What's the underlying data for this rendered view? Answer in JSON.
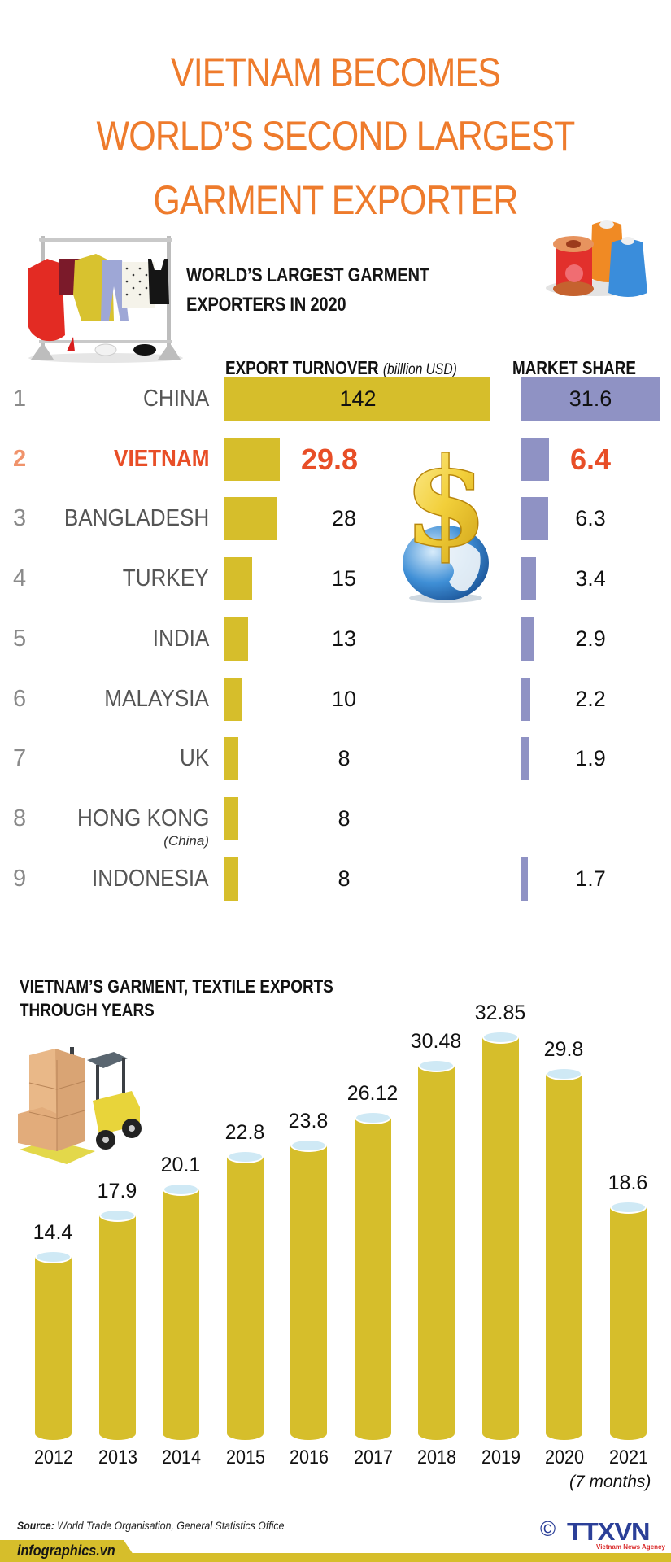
{
  "header": {
    "title_lines": [
      "VIETNAM BECOMES",
      "WORLD’S SECOND LARGEST",
      "GARMENT EXPORTER"
    ],
    "accent_color": "#ee7b2c"
  },
  "ranking": {
    "subtitle_lines": [
      "WORLD’S LARGEST GARMENT",
      "EXPORTERS IN 2020"
    ],
    "export_header": "EXPORT TURNOVER",
    "export_unit": "(billlion USD)",
    "market_header": "MARKET SHARE",
    "export_bar_color": "#d6be2b",
    "market_bar_color": "#8f92c4",
    "highlight_color": "#e84e27",
    "rows": [
      {
        "rank": "1",
        "country": "CHINA",
        "note": "",
        "export": "142",
        "share": "31.6"
      },
      {
        "rank": "2",
        "country": "VIETNAM",
        "note": "",
        "export": "29.8",
        "share": "6.4",
        "highlight": true
      },
      {
        "rank": "3",
        "country": "BANGLADESH",
        "note": "",
        "export": "28",
        "share": "6.3"
      },
      {
        "rank": "4",
        "country": "TURKEY",
        "note": "",
        "export": "15",
        "share": "3.4"
      },
      {
        "rank": "5",
        "country": "INDIA",
        "note": "",
        "export": "13",
        "share": "2.9"
      },
      {
        "rank": "6",
        "country": "MALAYSIA",
        "note": "",
        "export": "10",
        "share": "2.2"
      },
      {
        "rank": "7",
        "country": "UK",
        "note": "",
        "export": "8",
        "share": "1.9"
      },
      {
        "rank": "8",
        "country": "HONG KONG",
        "note": "(China)",
        "export": "8",
        "share": ""
      },
      {
        "rank": "9",
        "country": "INDONESIA",
        "note": "",
        "export": "8",
        "share": "1.7"
      }
    ]
  },
  "yearly": {
    "title_lines": [
      "VIETNAM’S GARMENT, TEXTILE EXPORTS",
      "THROUGH YEARS"
    ],
    "note_2021": "(7 months)",
    "bar_color": "#d6be2b",
    "cap_color": "#cfe9f5"
  },
  "chart_data": [
    {
      "type": "bar",
      "orientation": "horizontal",
      "title": "WORLD'S LARGEST GARMENT EXPORTERS IN 2020",
      "categories": [
        "CHINA",
        "VIETNAM",
        "BANGLADESH",
        "TURKEY",
        "INDIA",
        "MALAYSIA",
        "UK",
        "HONG KONG (China)",
        "INDONESIA"
      ],
      "series": [
        {
          "name": "EXPORT TURNOVER (billlion USD)",
          "values": [
            142,
            29.8,
            28,
            15,
            13,
            10,
            8,
            8,
            8
          ]
        },
        {
          "name": "MARKET SHARE",
          "values": [
            31.6,
            6.4,
            6.3,
            3.4,
            2.9,
            2.2,
            1.9,
            null,
            1.7
          ]
        }
      ],
      "highlight": "VIETNAM"
    },
    {
      "type": "bar",
      "title": "VIETNAM'S GARMENT, TEXTILE EXPORTS THROUGH YEARS",
      "categories": [
        "2012",
        "2013",
        "2014",
        "2015",
        "2016",
        "2017",
        "2018",
        "2019",
        "2020",
        "2021"
      ],
      "values": [
        14.4,
        17.9,
        20.1,
        22.8,
        23.8,
        26.12,
        30.48,
        32.85,
        29.8,
        18.6
      ],
      "annotations": [
        "2021 (7 months)"
      ],
      "xlabel": "",
      "ylabel": "",
      "grid": false
    }
  ],
  "footer": {
    "source_label": "Source:",
    "source_text": "World Trade Organisation, General Statistics Office",
    "site": "infographics.vn",
    "copyright_symbol": "©",
    "logo_text": "TTXVN",
    "logo_subtext": "Vietnam News Agency"
  }
}
